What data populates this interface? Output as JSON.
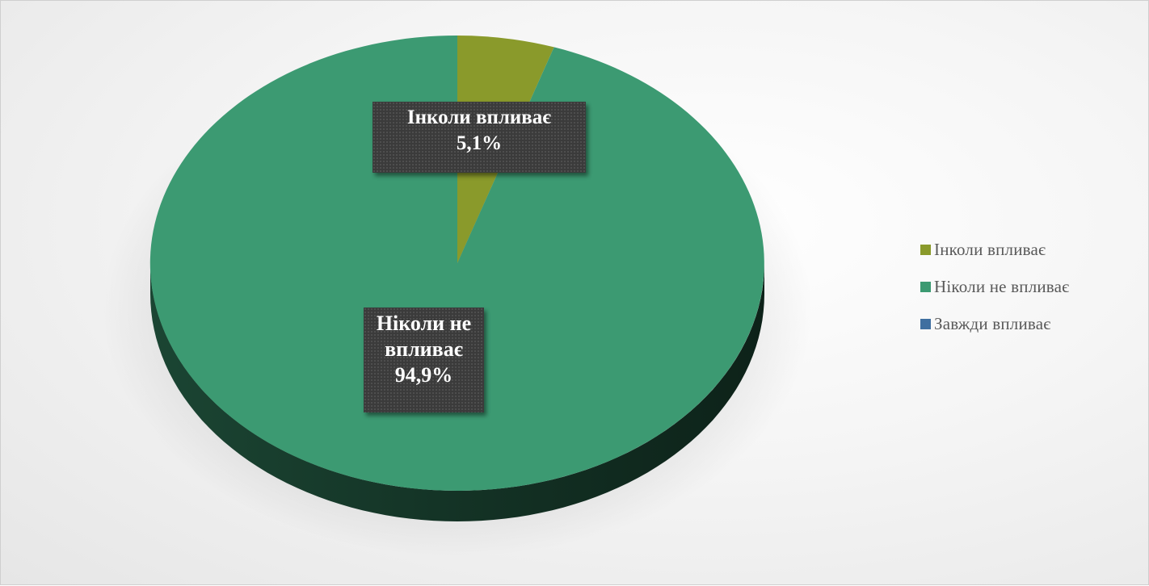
{
  "chart_data": {
    "type": "pie",
    "style": "3d",
    "slices": [
      {
        "label": "Інколи впливає",
        "value": 5.1,
        "value_label": "5,1%",
        "color": "#8a9a2b"
      },
      {
        "label": "Ніколи не впливає",
        "value": 94.9,
        "value_label": "94,9%",
        "color": "#3c9a72"
      },
      {
        "label": "Завжди впливає",
        "value": 0,
        "value_label": "",
        "color": "#3f6fa0"
      }
    ],
    "data_labels": [
      {
        "lines": [
          "Інколи впливає",
          "5,1%"
        ]
      },
      {
        "lines": [
          "Ніколи не",
          "впливає",
          "94,9%"
        ]
      }
    ],
    "legend_position": "right"
  }
}
